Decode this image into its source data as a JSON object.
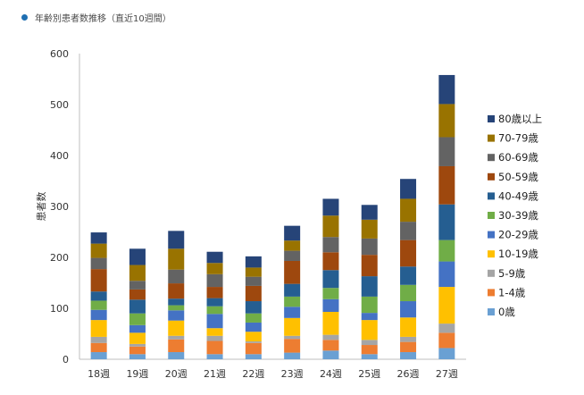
{
  "caption": "年齢別患者数推移（直近10週間）",
  "colors": {
    "caption_dot": "#1f6fb2",
    "axis": "#bfbfbf"
  },
  "chart_data": {
    "type": "bar",
    "stacked": true,
    "title": "",
    "xlabel": "",
    "ylabel": "患者数",
    "ylim": [
      0,
      600
    ],
    "yticks": [
      0,
      100,
      200,
      300,
      400,
      500,
      600
    ],
    "grid": false,
    "legend_position": "right",
    "legend_order": "reverse",
    "categories": [
      "18週",
      "19週",
      "20週",
      "21週",
      "22週",
      "23週",
      "24週",
      "25週",
      "26週",
      "27週"
    ],
    "series": [
      {
        "name": "0歳",
        "color": "#6aa0d3",
        "values": [
          14,
          10,
          14,
          10,
          10,
          13,
          17,
          10,
          14,
          22
        ]
      },
      {
        "name": "1-4歳",
        "color": "#ed7d31",
        "values": [
          18,
          15,
          25,
          26,
          22,
          27,
          21,
          18,
          20,
          30
        ]
      },
      {
        "name": "5-9歳",
        "color": "#a5a5a5",
        "values": [
          12,
          5,
          7,
          10,
          3,
          6,
          10,
          10,
          10,
          18
        ]
      },
      {
        "name": "10-19歳",
        "color": "#ffc000",
        "values": [
          33,
          22,
          30,
          15,
          19,
          35,
          45,
          39,
          38,
          72
        ]
      },
      {
        "name": "20-29歳",
        "color": "#4472c4",
        "values": [
          20,
          15,
          20,
          28,
          18,
          22,
          25,
          14,
          32,
          50
        ]
      },
      {
        "name": "30-39歳",
        "color": "#70ad47",
        "values": [
          18,
          23,
          10,
          15,
          18,
          20,
          22,
          32,
          32,
          42
        ]
      },
      {
        "name": "40-49歳",
        "color": "#255e91",
        "values": [
          18,
          27,
          13,
          16,
          24,
          25,
          35,
          40,
          36,
          70
        ]
      },
      {
        "name": "50-59歳",
        "color": "#9e480e",
        "values": [
          44,
          20,
          30,
          22,
          30,
          45,
          35,
          42,
          52,
          75
        ]
      },
      {
        "name": "60-69歳",
        "color": "#636363",
        "values": [
          22,
          17,
          27,
          25,
          18,
          20,
          30,
          32,
          36,
          57
        ]
      },
      {
        "name": "70-79歳",
        "color": "#997300",
        "values": [
          28,
          31,
          41,
          22,
          18,
          20,
          42,
          37,
          45,
          65
        ]
      },
      {
        "name": "80歳以上",
        "color": "#264478",
        "values": [
          22,
          32,
          35,
          22,
          22,
          29,
          33,
          29,
          39,
          57
        ]
      }
    ]
  }
}
